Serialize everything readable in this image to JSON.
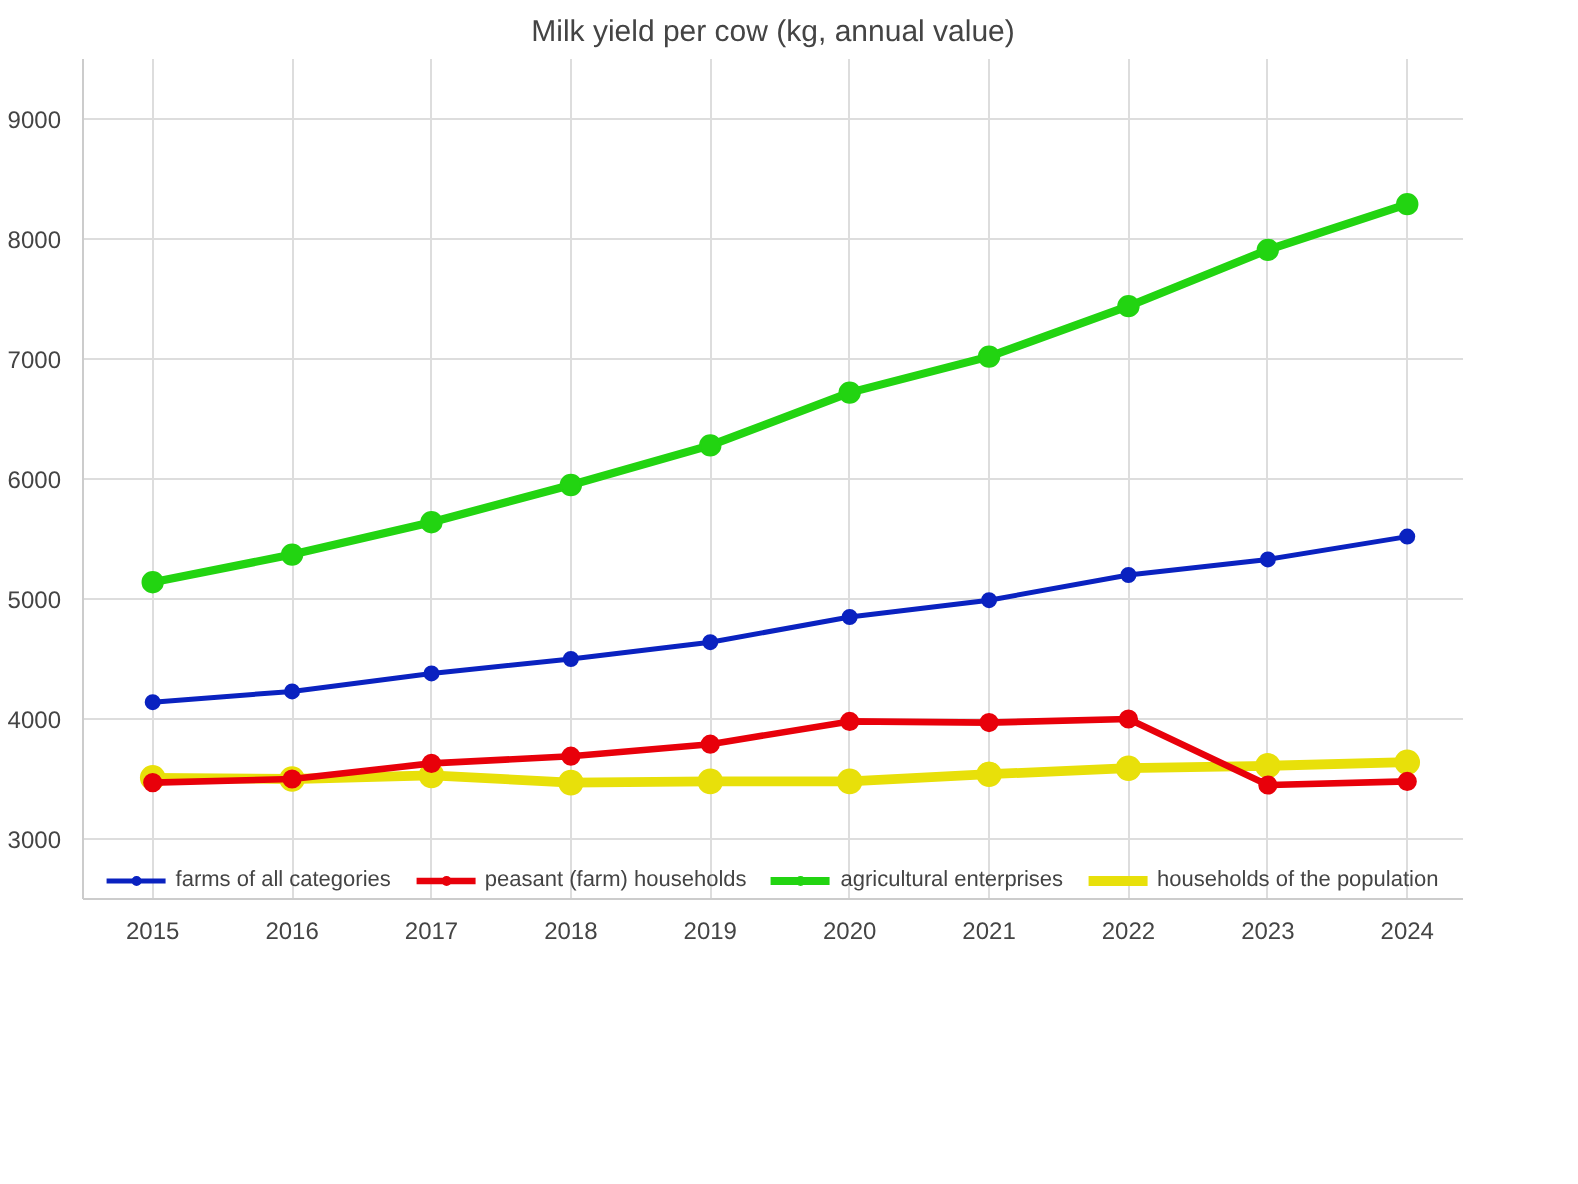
{
  "chart_data": {
    "type": "line",
    "title": "Milk yield per cow (kg, annual value)",
    "x": [
      2015,
      2016,
      2017,
      2018,
      2019,
      2020,
      2021,
      2022,
      2023,
      2024
    ],
    "xlim": [
      2014.5,
      2024.4
    ],
    "xticks": [
      2015,
      2016,
      2017,
      2018,
      2019,
      2020,
      2021,
      2022,
      2023,
      2024
    ],
    "ylim": [
      2500,
      9500
    ],
    "yticks": [
      3000,
      4000,
      5000,
      6000,
      7000,
      8000,
      9000
    ],
    "grid": true,
    "legend": "bottom",
    "marker": "circle",
    "line_style": "solid",
    "series": [
      {
        "name": "farms of all categories",
        "color": "#0a22c0",
        "values": [
          4140,
          4230,
          4380,
          4500,
          4640,
          4850,
          4990,
          5200,
          5330,
          5520
        ]
      },
      {
        "name": "peasant (farm) households",
        "color": "#e8000a",
        "values": [
          3470,
          3500,
          3630,
          3690,
          3790,
          3980,
          3970,
          4000,
          3450,
          3480
        ]
      },
      {
        "name": "agricultural enterprises",
        "color": "#22d411",
        "values": [
          5140,
          5370,
          5640,
          5950,
          6280,
          6720,
          7020,
          7440,
          7910,
          8290
        ]
      },
      {
        "name": "households of the population",
        "color": "#e8e00a",
        "values": [
          3510,
          3500,
          3530,
          3470,
          3480,
          3480,
          3540,
          3590,
          3610,
          3640
        ]
      }
    ]
  }
}
